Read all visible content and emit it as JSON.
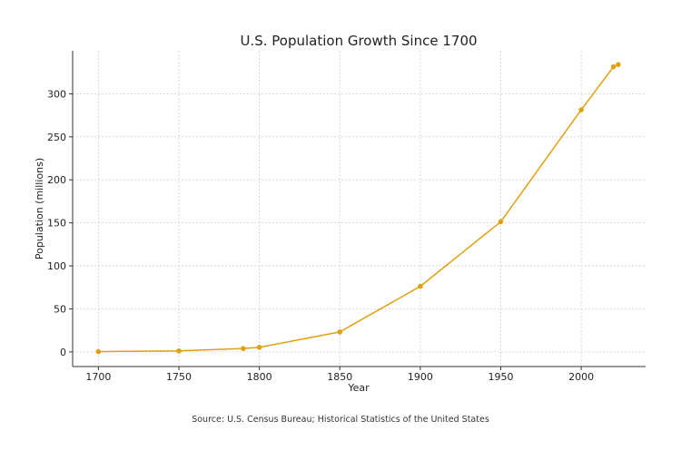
{
  "chart_data": {
    "type": "line",
    "title": "U.S. Population Growth Since 1700",
    "xlabel": "Year",
    "ylabel": "Population (millions)",
    "source": "Source: U.S. Census Bureau; Historical Statistics of the United States",
    "xlim": [
      1684,
      2040
    ],
    "ylim": [
      -17,
      350
    ],
    "xticks": [
      1700,
      1750,
      1800,
      1850,
      1900,
      1950,
      2000
    ],
    "yticks": [
      0,
      50,
      100,
      150,
      200,
      250,
      300
    ],
    "grid": true,
    "series": [
      {
        "name": "U.S. Population",
        "color": "#E0A010",
        "x": [
          1700,
          1750,
          1790,
          1800,
          1850,
          1900,
          1950,
          2000,
          2020,
          2023
        ],
        "y": [
          0.3,
          1.2,
          3.9,
          5.3,
          23.2,
          76.2,
          151.3,
          281.4,
          331.4,
          334.0
        ]
      }
    ]
  }
}
